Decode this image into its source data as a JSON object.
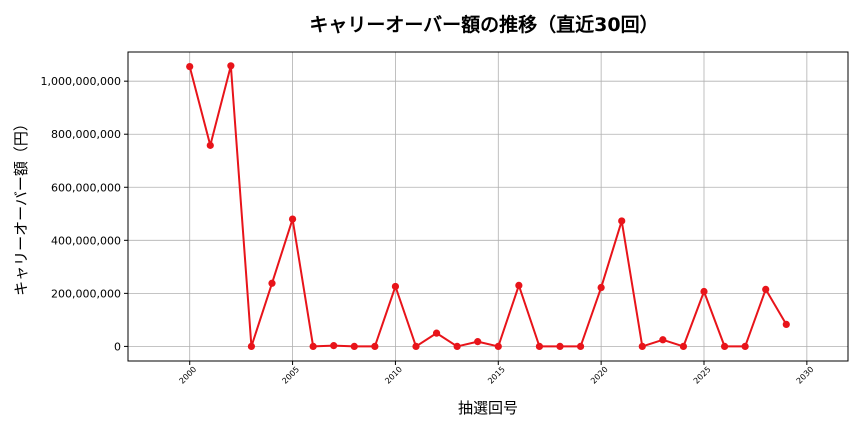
{
  "chart_data": {
    "type": "line",
    "title": "キャリーオーバー額の推移（直近30回）",
    "xlabel": "抽選回号",
    "ylabel": "キャリーオーバー額（円）",
    "xlim": [
      1997,
      2032
    ],
    "ylim": [
      -55000000,
      1110000000
    ],
    "xticks": [
      2000,
      2005,
      2010,
      2015,
      2020,
      2025,
      2030
    ],
    "yticks": [
      0,
      200000000,
      400000000,
      600000000,
      800000000,
      1000000000
    ],
    "ytick_labels": [
      "0",
      "200,000,000",
      "400,000,000",
      "600,000,000",
      "800,000,000",
      "1,000,000,000"
    ],
    "grid": true,
    "series": [
      {
        "color": "#e8141a",
        "x": [
          2000,
          2001,
          2002,
          2003,
          2004,
          2005,
          2006,
          2007,
          2008,
          2009,
          2010,
          2011,
          2012,
          2013,
          2014,
          2015,
          2016,
          2017,
          2018,
          2019,
          2020,
          2021,
          2022,
          2023,
          2024,
          2025,
          2026,
          2027,
          2028,
          2029
        ],
        "y": [
          1055000000,
          758000000,
          1058000000,
          0,
          238000000,
          480000000,
          0,
          3000000,
          0,
          0,
          226000000,
          0,
          50000000,
          0,
          18000000,
          0,
          230000000,
          0,
          0,
          0,
          222000000,
          473000000,
          0,
          25000000,
          0,
          207000000,
          0,
          0,
          215000000,
          83000000
        ]
      }
    ]
  }
}
